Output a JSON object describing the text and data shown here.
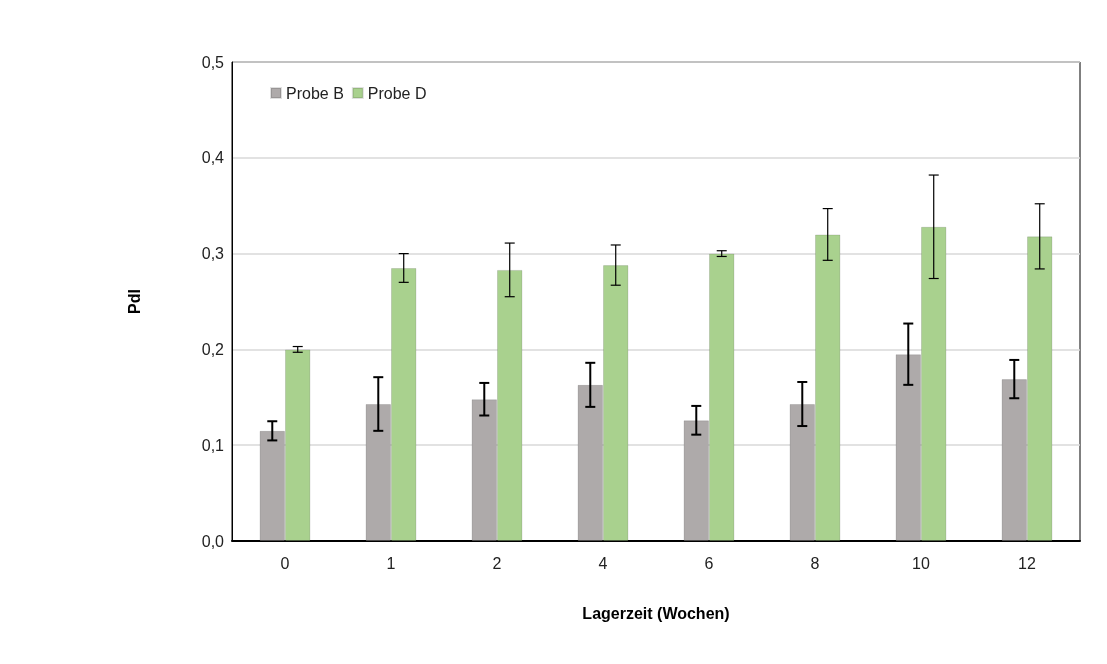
{
  "chart_data": {
    "type": "bar",
    "xlabel": "Lagerzeit (Wochen)",
    "ylabel": "PdI",
    "categories": [
      "0",
      "1",
      "2",
      "4",
      "6",
      "8",
      "10",
      "12"
    ],
    "series": [
      {
        "name": "Probe B",
        "color": "#aeaaaa",
        "values": [
          0.115,
          0.143,
          0.148,
          0.163,
          0.126,
          0.143,
          0.195,
          0.169
        ],
        "errors": [
          0.01,
          0.028,
          0.017,
          0.023,
          0.015,
          0.023,
          0.032,
          0.02
        ]
      },
      {
        "name": "Probe D",
        "color": "#a9d18e",
        "values": [
          0.2,
          0.285,
          0.283,
          0.288,
          0.3,
          0.32,
          0.328,
          0.318
        ],
        "errors": [
          0.003,
          0.015,
          0.028,
          0.021,
          0.003,
          0.027,
          0.054,
          0.034
        ]
      }
    ],
    "ylim": [
      0,
      0.5
    ],
    "yticks": [
      {
        "value": 0,
        "label": "0,0"
      },
      {
        "value": 0.1,
        "label": "0,1"
      },
      {
        "value": 0.2,
        "label": "0,2"
      },
      {
        "value": 0.3,
        "label": "0,3"
      },
      {
        "value": 0.4,
        "label": "0,4"
      },
      {
        "value": 0.5,
        "label": "0,5"
      }
    ],
    "grid": "y",
    "legend": "top left"
  }
}
